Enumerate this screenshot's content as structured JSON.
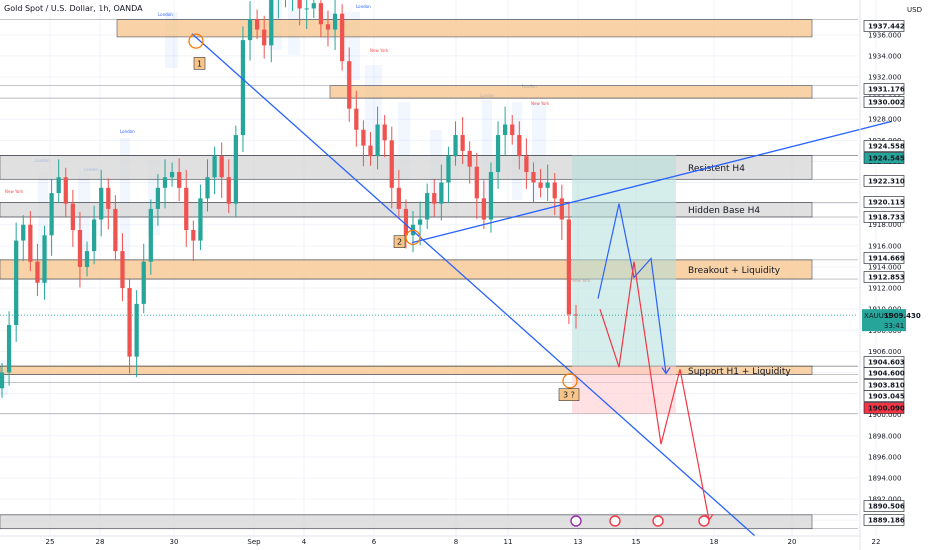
{
  "header": {
    "title": "Gold Spot / U.S. Dollar, 1h, OANDA",
    "currency": "USD"
  },
  "colors": {
    "up": "#26a69a",
    "down": "#ef5350",
    "zone_orange": "#f7c58a",
    "zone_gray": "#d6d6d6",
    "trend_blue": "#2962ff",
    "proj_red": "#f23645",
    "tp_green": "#b2dfdb",
    "sl_red": "#ffcdd2"
  },
  "chart_data": {
    "type": "candlestick",
    "symbol": "XAUUSD",
    "timeframe": "1h",
    "ylim": [
      1888.5,
      1939.3
    ],
    "x_ticks": [
      "25",
      "28",
      "30",
      "Sep",
      "4",
      "6",
      "8",
      "11",
      "13",
      "15",
      "18",
      "20",
      "22"
    ],
    "y_ticks": [
      1890,
      1892,
      1894,
      1896,
      1898,
      1900,
      1902,
      1904,
      1906,
      1908,
      1910,
      1912,
      1914,
      1916,
      1918,
      1920,
      1922,
      1924,
      1926,
      1928,
      1930,
      1932,
      1934,
      1936
    ],
    "closes": [
      1904.0,
      1908.5,
      1916.5,
      1918.0,
      1914.5,
      1912.5,
      1917.0,
      1921.0,
      1922.5,
      1920.0,
      1917.5,
      1914.0,
      1915.5,
      1918.5,
      1921.5,
      1919.5,
      1915.5,
      1912.0,
      1905.5,
      1910.5,
      1914.5,
      1919.5,
      1921.5,
      1922.5,
      1923.0,
      1921.5,
      1917.5,
      1916.5,
      1920.5,
      1922.5,
      1924.5,
      1922.5,
      1920.0,
      1926.5,
      1935.5,
      1937.5,
      1936.5,
      1935.0,
      1939.5,
      1941.0,
      1939.5,
      1940.5,
      1938.5,
      1938.5,
      1939.0,
      1937.0,
      1936.5,
      1938.0,
      1933.5,
      1929.0,
      1927.0,
      1925.5,
      1924.5,
      1927.5,
      1926.0,
      1921.5,
      1919.5,
      1917.0,
      1918.0,
      1918.5,
      1921.0,
      1920.0,
      1922.0,
      1924.5,
      1926.5,
      1925.0,
      1923.5,
      1920.5,
      1918.5,
      1923.0,
      1926.5,
      1927.5,
      1926.5,
      1924.5,
      1923.0,
      1922.0,
      1921.5,
      1922.0,
      1920.5,
      1918.5,
      1909.5,
      1909.4
    ],
    "levels": [
      {
        "label": "1937.442",
        "value": 1937.442,
        "bg": "#ffffff",
        "fg": "#131722"
      },
      {
        "label": "1931.176",
        "value": 1931.176,
        "bg": "#ffffff",
        "fg": "#131722"
      },
      {
        "label": "1930.002",
        "value": 1930.002,
        "bg": "#ffffff",
        "fg": "#131722"
      },
      {
        "label": "1924.558",
        "value": 1924.558,
        "bg": "#ffffff",
        "fg": "#131722"
      },
      {
        "label": "1924.545",
        "value": 1924.545,
        "bg": "#26a69a",
        "fg": "#ffffff"
      },
      {
        "label": "1922.310",
        "value": 1922.31,
        "bg": "#ffffff",
        "fg": "#131722"
      },
      {
        "label": "1920.115",
        "value": 1920.115,
        "bg": "#ffffff",
        "fg": "#131722"
      },
      {
        "label": "1918.733",
        "value": 1918.733,
        "bg": "#ffffff",
        "fg": "#131722"
      },
      {
        "label": "1914.669",
        "value": 1914.669,
        "bg": "#ffffff",
        "fg": "#131722"
      },
      {
        "label": "1912.853",
        "value": 1912.853,
        "bg": "#ffffff",
        "fg": "#131722"
      },
      {
        "label": "1904.603",
        "value": 1904.603,
        "bg": "#ffffff",
        "fg": "#131722"
      },
      {
        "label": "1904.600",
        "value": 1904.6,
        "bg": "#ffffff",
        "fg": "#131722"
      },
      {
        "label": "1903.810",
        "value": 1903.81,
        "bg": "#ffffff",
        "fg": "#131722"
      },
      {
        "label": "1903.045",
        "value": 1903.045,
        "bg": "#ffffff",
        "fg": "#131722"
      },
      {
        "label": "1900.090",
        "value": 1900.09,
        "bg": "#f23645",
        "fg": "#ffffff"
      },
      {
        "label": "1890.506",
        "value": 1890.506,
        "bg": "#ffffff",
        "fg": "#131722"
      },
      {
        "label": "1889.186",
        "value": 1889.186,
        "bg": "#ffffff",
        "fg": "#131722"
      }
    ],
    "price_tag": {
      "symbol": "XAUUSD",
      "price": "1909.430",
      "countdown": "33:41"
    },
    "zones": [
      {
        "label": "Resistent H4",
        "top": 1924.558,
        "bottom": 1922.31,
        "kind": "gray"
      },
      {
        "label": "Hidden Base H4",
        "top": 1920.115,
        "bottom": 1918.733,
        "kind": "gray"
      },
      {
        "label": "Breakout + Liquidity",
        "top": 1914.669,
        "bottom": 1912.853,
        "kind": "orange"
      },
      {
        "label": "Support H1 + Liquidity",
        "top": 1904.603,
        "bottom": 1903.81,
        "kind": "orange"
      },
      {
        "label": "",
        "top": 1937.442,
        "bottom": 1935.8,
        "kind": "orange"
      },
      {
        "label": "",
        "top": 1931.176,
        "bottom": 1930.002,
        "kind": "orange"
      },
      {
        "label": "",
        "top": 1890.506,
        "bottom": 1889.186,
        "kind": "gray"
      }
    ],
    "markers": [
      "1",
      "2",
      "3 ?"
    ],
    "sessions": [
      "London",
      "New York"
    ]
  }
}
